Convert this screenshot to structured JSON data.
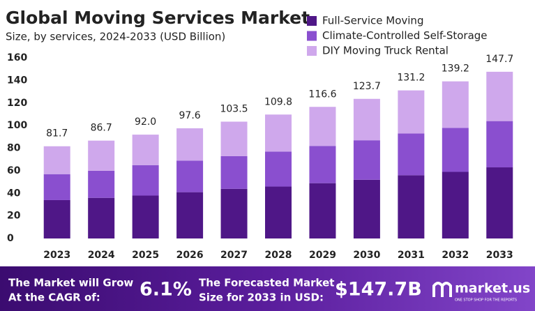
{
  "chart_data": {
    "type": "bar",
    "stacked": true,
    "title": "Global Moving Services Market",
    "subtitle": "Size, by services, 2024-2033 (USD Billion)",
    "categories": [
      "2023",
      "2024",
      "2025",
      "2026",
      "2027",
      "2028",
      "2029",
      "2030",
      "2031",
      "2032",
      "2033"
    ],
    "series": [
      {
        "name": "Full-Service Moving",
        "color": "#4f1787",
        "values": [
          34,
          36,
          38,
          41,
          44,
          46,
          49,
          52,
          56,
          59,
          63
        ]
      },
      {
        "name": "Climate-Controlled Self-Storage",
        "color": "#8a4fcf",
        "values": [
          23,
          24,
          27,
          28,
          29,
          31,
          33,
          35,
          37,
          39,
          41
        ]
      },
      {
        "name": "DIY Moving Truck Rental",
        "color": "#cfa8ec",
        "values": [
          24.7,
          26.7,
          27,
          28.6,
          30.5,
          32.8,
          34.6,
          36.7,
          38.2,
          41.2,
          43.7
        ]
      }
    ],
    "totals": [
      81.7,
      86.7,
      92.0,
      97.6,
      103.5,
      109.8,
      116.6,
      123.7,
      131.2,
      139.2,
      147.7
    ],
    "total_labels": [
      "81.7",
      "86.7",
      "92.0",
      "97.6",
      "103.5",
      "109.8",
      "116.6",
      "123.7",
      "131.2",
      "139.2",
      "147.7"
    ],
    "ylim": [
      0,
      160
    ],
    "yticks": [
      0,
      20,
      40,
      60,
      80,
      100,
      120,
      140,
      160
    ],
    "grid": false,
    "legend": "top-right"
  },
  "footer": {
    "cagr_text": [
      "The Market will Grow",
      "At the CAGR of:"
    ],
    "cagr": "6.1%",
    "forecast_text": [
      "The Forecasted Market",
      "Size for 2033 in USD:"
    ],
    "forecast": "$147.7B",
    "brand": "market.us",
    "tagline": "ONE STOP SHOP FOR THE REPORTS"
  }
}
